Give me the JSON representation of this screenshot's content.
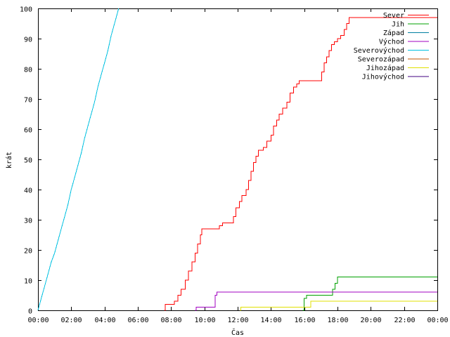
{
  "chart_data": {
    "type": "line",
    "title": "",
    "xlabel": "Čas",
    "ylabel": "krát",
    "xlim": [
      0,
      24
    ],
    "ylim": [
      0,
      100
    ],
    "x_ticks": [
      "00:00",
      "02:00",
      "04:00",
      "06:00",
      "08:00",
      "10:00",
      "12:00",
      "14:00",
      "16:00",
      "18:00",
      "20:00",
      "22:00",
      "00:00"
    ],
    "y_ticks": [
      0,
      10,
      20,
      30,
      40,
      50,
      60,
      70,
      80,
      90,
      100
    ],
    "grid": false,
    "legend_position": "top-right",
    "series": [
      {
        "name": "Sever",
        "color": "#ff0000",
        "step": true,
        "points": [
          [
            7.6,
            0
          ],
          [
            7.65,
            2
          ],
          [
            8.1,
            2
          ],
          [
            8.2,
            3
          ],
          [
            8.4,
            5
          ],
          [
            8.6,
            7
          ],
          [
            8.85,
            10
          ],
          [
            9.05,
            13
          ],
          [
            9.25,
            16
          ],
          [
            9.45,
            19
          ],
          [
            9.6,
            22
          ],
          [
            9.75,
            25
          ],
          [
            9.85,
            27
          ],
          [
            10.8,
            27
          ],
          [
            10.9,
            28
          ],
          [
            11.1,
            29
          ],
          [
            11.6,
            29
          ],
          [
            11.75,
            31
          ],
          [
            11.9,
            34
          ],
          [
            12.1,
            36
          ],
          [
            12.25,
            38
          ],
          [
            12.5,
            40
          ],
          [
            12.65,
            43
          ],
          [
            12.8,
            46
          ],
          [
            12.95,
            49
          ],
          [
            13.1,
            51
          ],
          [
            13.25,
            53
          ],
          [
            13.55,
            54
          ],
          [
            13.75,
            56
          ],
          [
            14.0,
            58
          ],
          [
            14.15,
            61
          ],
          [
            14.35,
            63
          ],
          [
            14.5,
            65
          ],
          [
            14.7,
            67
          ],
          [
            14.95,
            69
          ],
          [
            15.15,
            72
          ],
          [
            15.35,
            74
          ],
          [
            15.55,
            75
          ],
          [
            15.7,
            76
          ],
          [
            16.9,
            76
          ],
          [
            17.05,
            79
          ],
          [
            17.2,
            82
          ],
          [
            17.35,
            84
          ],
          [
            17.5,
            86
          ],
          [
            17.65,
            88
          ],
          [
            17.8,
            89
          ],
          [
            18.0,
            90
          ],
          [
            18.2,
            91
          ],
          [
            18.4,
            93
          ],
          [
            18.55,
            95
          ],
          [
            18.7,
            97
          ],
          [
            24.0,
            97
          ]
        ]
      },
      {
        "name": "Jih",
        "color": "#00a000",
        "step": true,
        "points": [
          [
            15.9,
            0
          ],
          [
            16.0,
            4
          ],
          [
            16.15,
            5
          ],
          [
            17.6,
            5
          ],
          [
            17.7,
            7
          ],
          [
            17.85,
            9
          ],
          [
            18.0,
            11
          ],
          [
            24.0,
            11
          ]
        ]
      },
      {
        "name": "Západ",
        "color": "#0080a0",
        "step": true,
        "points": []
      },
      {
        "name": "Východ",
        "color": "#a000c0",
        "step": true,
        "points": [
          [
            9.45,
            0
          ],
          [
            9.5,
            1
          ],
          [
            10.55,
            1
          ],
          [
            10.65,
            5
          ],
          [
            10.75,
            6
          ],
          [
            24.0,
            6
          ]
        ]
      },
      {
        "name": "Severovýchod",
        "color": "#00c0e0",
        "step": false,
        "points": [
          [
            0.0,
            0
          ],
          [
            0.2,
            4
          ],
          [
            0.4,
            8
          ],
          [
            0.6,
            12
          ],
          [
            0.8,
            16
          ],
          [
            1.0,
            19
          ],
          [
            1.2,
            23
          ],
          [
            1.4,
            27
          ],
          [
            1.6,
            31
          ],
          [
            1.8,
            35
          ],
          [
            2.0,
            40
          ],
          [
            2.2,
            44
          ],
          [
            2.4,
            48
          ],
          [
            2.6,
            52
          ],
          [
            2.8,
            57
          ],
          [
            3.0,
            61
          ],
          [
            3.2,
            65
          ],
          [
            3.4,
            69
          ],
          [
            3.6,
            74
          ],
          [
            3.8,
            78
          ],
          [
            4.0,
            82
          ],
          [
            4.2,
            86
          ],
          [
            4.4,
            91
          ],
          [
            4.6,
            95
          ],
          [
            4.8,
            99
          ],
          [
            4.85,
            100
          ]
        ]
      },
      {
        "name": "Severozápad",
        "color": "#c05000",
        "step": true,
        "points": []
      },
      {
        "name": "Jihozápad",
        "color": "#e0e000",
        "step": true,
        "points": [
          [
            12.15,
            0
          ],
          [
            12.2,
            1
          ],
          [
            16.3,
            1
          ],
          [
            16.4,
            3
          ],
          [
            24.0,
            3
          ]
        ]
      },
      {
        "name": "Jihovýchod",
        "color": "#400080",
        "step": true,
        "points": []
      }
    ]
  }
}
